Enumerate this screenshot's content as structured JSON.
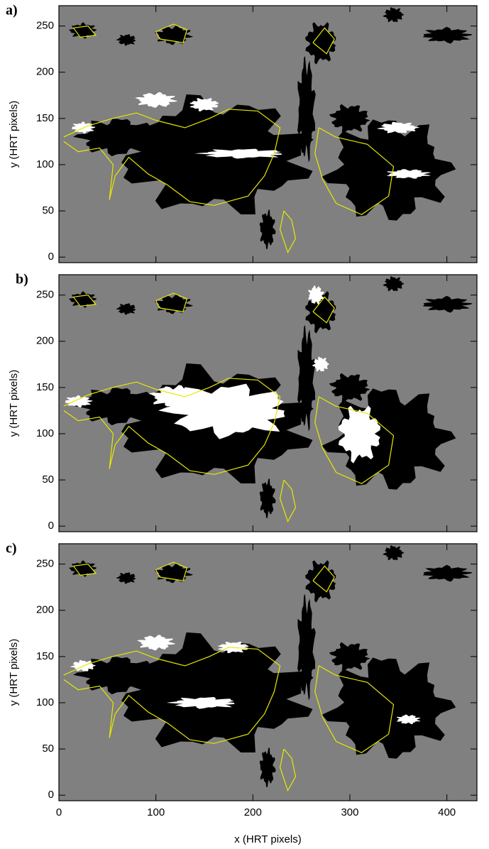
{
  "chart_data": [
    {
      "type": "image",
      "label": "a)",
      "ylabel": "y (HRT pixels)",
      "xlim": [
        0,
        431
      ],
      "ylim": [
        -6,
        272
      ],
      "xticks": [
        0,
        100,
        200,
        300,
        400
      ],
      "yticks": [
        0,
        50,
        100,
        150,
        200,
        250
      ]
    },
    {
      "type": "image",
      "label": "b)",
      "ylabel": "y (HRT pixels)",
      "xlim": [
        0,
        431
      ],
      "ylim": [
        -6,
        272
      ],
      "xticks": [
        0,
        100,
        200,
        300,
        400
      ],
      "yticks": [
        0,
        50,
        100,
        150,
        200,
        250
      ]
    },
    {
      "type": "image",
      "label": "c)",
      "ylabel": "y (HRT pixels)",
      "xlabel": "x (HRT pixels)",
      "xlim": [
        0,
        431
      ],
      "ylim": [
        -6,
        272
      ],
      "xticks": [
        0,
        100,
        200,
        300,
        400
      ],
      "yticks": [
        0,
        50,
        100,
        150,
        200,
        250
      ]
    }
  ]
}
